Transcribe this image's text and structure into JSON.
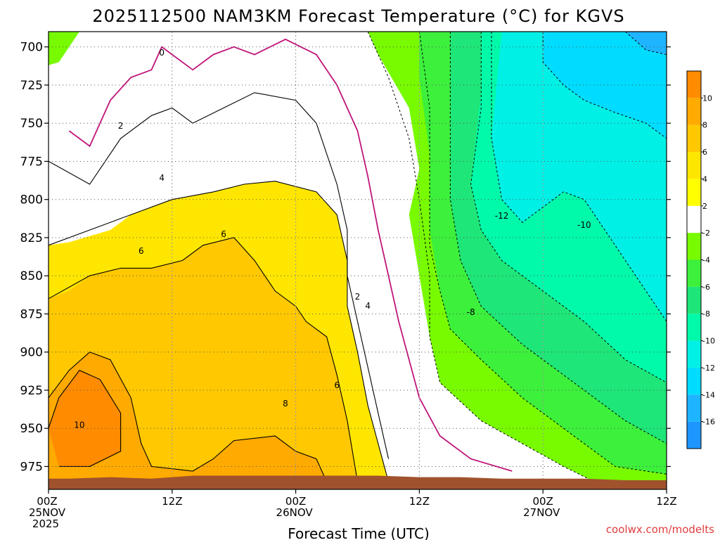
{
  "chart_data": {
    "type": "heatmap",
    "title": "2025112500 NAM3KM Forecast Temperature (°C) for KGVS",
    "xlabel": "Forecast Time (UTC)",
    "ylabel": "",
    "ylim": [
      990,
      690
    ],
    "xlim": [
      0,
      60
    ],
    "y_ticks": [
      "700",
      "725",
      "750",
      "775",
      "800",
      "825",
      "850",
      "875",
      "900",
      "925",
      "950",
      "975"
    ],
    "x_ticks": [
      {
        "hour": 0,
        "label": "00Z",
        "sub1": "25NOV",
        "sub2": "2025"
      },
      {
        "hour": 12,
        "label": "12Z",
        "sub1": "",
        "sub2": ""
      },
      {
        "hour": 24,
        "label": "00Z",
        "sub1": "26NOV",
        "sub2": ""
      },
      {
        "hour": 36,
        "label": "12Z",
        "sub1": "",
        "sub2": ""
      },
      {
        "hour": 48,
        "label": "00Z",
        "sub1": "27NOV",
        "sub2": ""
      },
      {
        "hour": 60,
        "label": "12Z",
        "sub1": "",
        "sub2": ""
      }
    ],
    "colorbar": [
      {
        "lo": -18,
        "hi": -16,
        "color": "#1e96ff",
        "label": "-16"
      },
      {
        "lo": -16,
        "hi": -14,
        "color": "#1eb4ff",
        "label": "-14"
      },
      {
        "lo": -14,
        "hi": -12,
        "color": "#00dcff",
        "label": "-12"
      },
      {
        "lo": -12,
        "hi": -10,
        "color": "#00f0e6",
        "label": "-10"
      },
      {
        "lo": -10,
        "hi": -8,
        "color": "#00faaa",
        "label": "-8"
      },
      {
        "lo": -8,
        "hi": -6,
        "color": "#1ee678",
        "label": "-6"
      },
      {
        "lo": -6,
        "hi": -4,
        "color": "#3cf03c",
        "label": "-4"
      },
      {
        "lo": -4,
        "hi": -2,
        "color": "#78fa00",
        "label": "-2"
      },
      {
        "lo": -2,
        "hi": 2,
        "color": "#ffffff",
        "label": "2"
      },
      {
        "lo": 2,
        "hi": 4,
        "color": "#ffff00",
        "label": "4"
      },
      {
        "lo": 4,
        "hi": 6,
        "color": "#ffe600",
        "label": "6"
      },
      {
        "lo": 6,
        "hi": 8,
        "color": "#ffc800",
        "label": "8"
      },
      {
        "lo": 8,
        "hi": 10,
        "color": "#ffaa00",
        "label": "10"
      },
      {
        "lo": 10,
        "hi": 12,
        "color": "#ff8c00",
        "label": ""
      }
    ],
    "contour_labels": [
      {
        "text": "0",
        "hour": 11,
        "p": 704
      },
      {
        "text": "2",
        "hour": 7,
        "p": 752
      },
      {
        "text": "4",
        "hour": 11,
        "p": 786
      },
      {
        "text": "6",
        "hour": 9,
        "p": 834
      },
      {
        "text": "6",
        "hour": 17,
        "p": 823
      },
      {
        "text": "2",
        "hour": 30,
        "p": 864
      },
      {
        "text": "4",
        "hour": 31,
        "p": 870
      },
      {
        "text": "6",
        "hour": 28,
        "p": 922
      },
      {
        "text": "8",
        "hour": 23,
        "p": 934
      },
      {
        "text": "10",
        "hour": 3,
        "p": 948
      },
      {
        "text": "-8",
        "hour": 41,
        "p": 874
      },
      {
        "text": "-12",
        "hour": 44,
        "p": 811
      },
      {
        "text": "-10",
        "hour": 52,
        "p": 817
      }
    ],
    "series": [
      {
        "name": "surface-pressure-hPa",
        "x": [
          0,
          2,
          6,
          10,
          12,
          14,
          16,
          18,
          20,
          24,
          28,
          30,
          32,
          36,
          40,
          44,
          48,
          52,
          56,
          60
        ],
        "values": [
          983,
          983,
          982,
          983,
          982,
          981,
          981,
          981,
          981,
          981,
          981,
          981,
          981,
          982,
          982,
          983,
          983,
          983,
          984,
          984
        ]
      }
    ]
  },
  "credit": "coolwx.com/modelts",
  "colors": {
    "ground": "#a0522d",
    "freezing_contour": "#c0157a",
    "grid": "#808080"
  }
}
